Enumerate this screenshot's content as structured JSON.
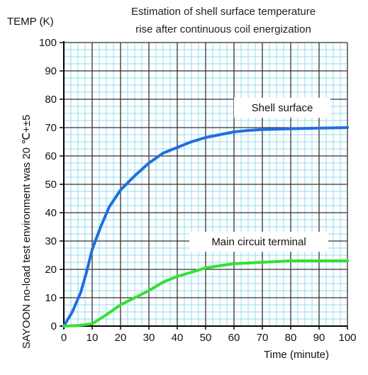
{
  "chart_data": {
    "type": "line",
    "title": [
      "Estimation of shell surface temperature",
      "rise after continuous coil energization"
    ],
    "ylabel": "TEMP (K)",
    "xlabel": "Time (minute)",
    "side_note": "SAYOON no-load test environment was 20 ℃+±5",
    "xlim": [
      0,
      100
    ],
    "ylim": [
      0,
      100
    ],
    "xticks": [
      "0",
      "10",
      "20",
      "30",
      "40",
      "50",
      "60",
      "70",
      "80",
      "90",
      "100"
    ],
    "yticks": [
      "0",
      "10",
      "20",
      "30",
      "40",
      "50",
      "60",
      "70",
      "80",
      "90",
      "100"
    ],
    "grid": true,
    "series": [
      {
        "name": "Shell surface",
        "color": "#1f6fe0",
        "x": [
          0,
          3,
          6,
          8,
          10,
          13,
          16,
          20,
          25,
          30,
          35,
          40,
          45,
          50,
          55,
          60,
          65,
          70,
          80,
          90,
          100
        ],
        "y": [
          0,
          5,
          12,
          19,
          27,
          35,
          42,
          48,
          53,
          57.5,
          61,
          63,
          65,
          66.5,
          67.5,
          68.5,
          69,
          69.3,
          69.6,
          69.8,
          70
        ]
      },
      {
        "name": "Main circuit terminal",
        "color": "#33e033",
        "x": [
          0,
          5,
          10,
          15,
          20,
          25,
          30,
          35,
          40,
          45,
          50,
          55,
          60,
          70,
          80,
          90,
          100
        ],
        "y": [
          0,
          0.2,
          0.8,
          4,
          7.5,
          10,
          12.5,
          15.5,
          17.5,
          19,
          20.5,
          21.3,
          22,
          22.5,
          23,
          23,
          23
        ]
      }
    ],
    "annotations": [
      "Shell surface",
      "Main circuit terminal"
    ]
  }
}
